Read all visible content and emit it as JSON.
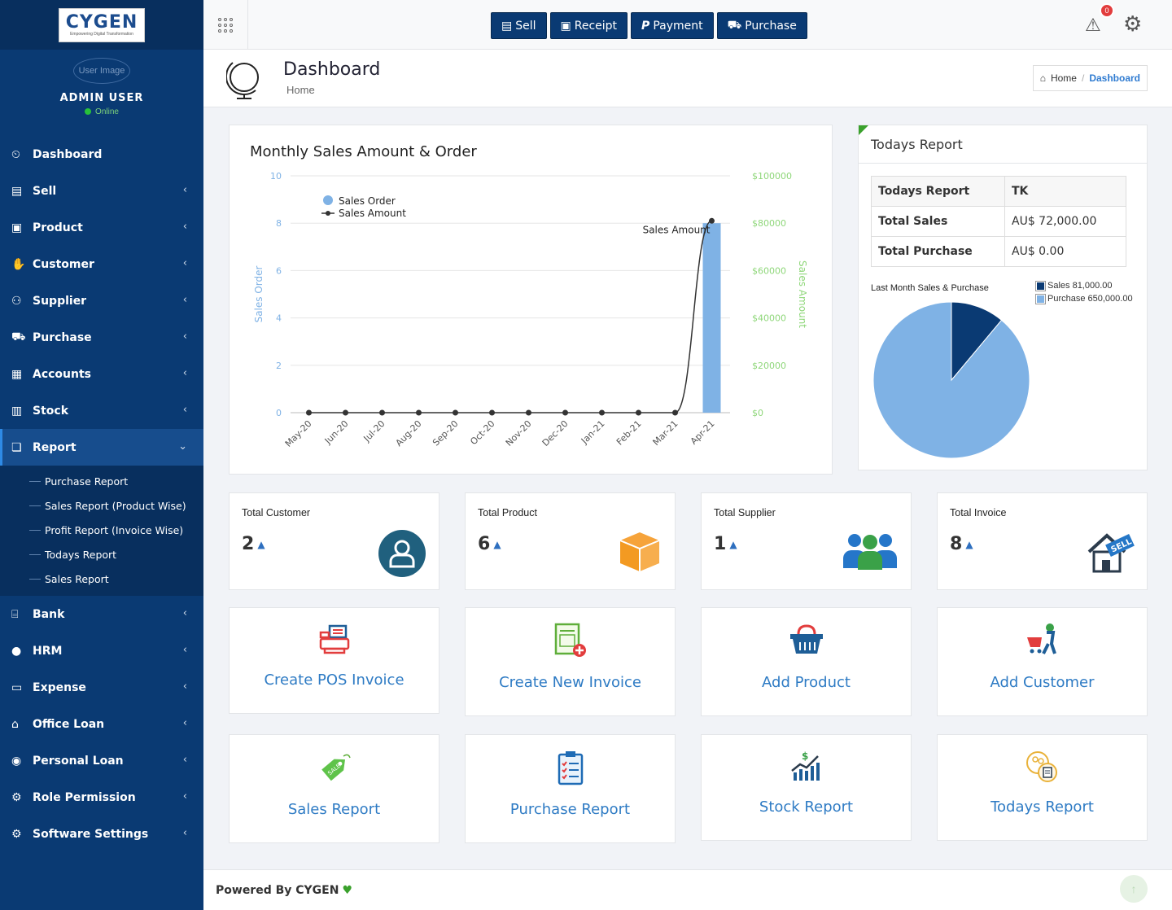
{
  "brand": {
    "logo_text": "CYGEN",
    "logo_tagline": "Empowering Digital Transformation"
  },
  "user": {
    "avatar_alt": "User Image",
    "name": "ADMIN USER",
    "status": "Online"
  },
  "sidebar": {
    "items": [
      {
        "label": "Dashboard",
        "icon": "dashboard-icon"
      },
      {
        "label": "Sell",
        "icon": "pos-icon"
      },
      {
        "label": "Product",
        "icon": "product-icon"
      },
      {
        "label": "Customer",
        "icon": "handshake-icon"
      },
      {
        "label": "Supplier",
        "icon": "user-icon"
      },
      {
        "label": "Purchase",
        "icon": "cart-icon"
      },
      {
        "label": "Accounts",
        "icon": "money-icon"
      },
      {
        "label": "Stock",
        "icon": "bar-chart-icon"
      },
      {
        "label": "Report",
        "icon": "book-icon"
      },
      {
        "label": "Bank",
        "icon": "bank-icon"
      },
      {
        "label": "HRM",
        "icon": "person-icon"
      },
      {
        "label": "Expense",
        "icon": "credit-card-icon"
      },
      {
        "label": "Office Loan",
        "icon": "institution-icon"
      },
      {
        "label": "Personal Loan",
        "icon": "user-circle-icon"
      },
      {
        "label": "Role Permission",
        "icon": "gear-icon"
      },
      {
        "label": "Software Settings",
        "icon": "gear-icon"
      }
    ],
    "report_submenu": [
      "Purchase Report",
      "Sales Report (Product Wise)",
      "Profit Report (Invoice Wise)",
      "Todays Report",
      "Sales Report"
    ]
  },
  "toolbar": {
    "sell": "Sell",
    "receipt": "Receipt",
    "payment": "Payment",
    "purchase": "Purchase",
    "alert_count": "0"
  },
  "page": {
    "title": "Dashboard",
    "subtitle": "Home",
    "breadcrumb_home": "Home",
    "breadcrumb_current": "Dashboard"
  },
  "chart_data": {
    "type": "bar",
    "title": "Monthly Sales Amount & Order",
    "categories": [
      "May-20",
      "Jun-20",
      "Jul-20",
      "Aug-20",
      "Sep-20",
      "Oct-20",
      "Nov-20",
      "Dec-20",
      "Jan-21",
      "Feb-21",
      "Mar-21",
      "Apr-21"
    ],
    "series": [
      {
        "name": "Sales Order",
        "type": "bar",
        "axis": "left",
        "values": [
          0,
          0,
          0,
          0,
          0,
          0,
          0,
          0,
          0,
          0,
          0,
          8
        ]
      },
      {
        "name": "Sales Amount",
        "type": "line",
        "axis": "right",
        "values": [
          0,
          0,
          0,
          0,
          0,
          0,
          0,
          0,
          0,
          0,
          0,
          81000
        ]
      }
    ],
    "ylabel": "Sales Order",
    "ylabel_right": "Sales Amount",
    "ylim": [
      0,
      10
    ],
    "ylim_right": [
      0,
      100000
    ],
    "yticks": [
      "0",
      "2",
      "4",
      "6",
      "8",
      "10"
    ],
    "yticks_right": [
      "$0",
      "$20000",
      "$40000",
      "$60000",
      "$80000",
      "$100000"
    ],
    "annotation": "Sales Amount",
    "legend": "top-left",
    "colors": {
      "bar": "#7fb2e5",
      "line": "#333333",
      "left_axis": "#7fb2e5",
      "right_axis": "#8fd77a"
    }
  },
  "today": {
    "title": "Todays Report",
    "table": [
      [
        "Todays Report",
        "TK"
      ],
      [
        "Total Sales",
        "AU$ 72,000.00"
      ],
      [
        "Total Purchase",
        "AU$ 0.00"
      ]
    ],
    "pie_title": "Last Month Sales & Purchase",
    "pie": [
      {
        "label": "Sales 81,000.00",
        "value": 81000,
        "color": "#0a3a73"
      },
      {
        "label": "Purchase 650,000.00",
        "value": 650000,
        "color": "#7fb2e5"
      }
    ]
  },
  "stats": [
    {
      "label": "Total Customer",
      "value": "2",
      "icon": "customer-icon"
    },
    {
      "label": "Total Product",
      "value": "6",
      "icon": "box-icon"
    },
    {
      "label": "Total Supplier",
      "value": "1",
      "icon": "team-icon"
    },
    {
      "label": "Total Invoice",
      "value": "8",
      "icon": "sell-house-icon"
    }
  ],
  "actions": [
    {
      "label": "Create POS Invoice",
      "icon": "pos-register-icon"
    },
    {
      "label": "Create New Invoice",
      "icon": "invoice-add-icon"
    },
    {
      "label": "Add Product",
      "icon": "basket-icon"
    },
    {
      "label": "Add Customer",
      "icon": "shopper-icon"
    },
    {
      "label": "Sales Report",
      "icon": "sale-tag-icon"
    },
    {
      "label": "Purchase Report",
      "icon": "clipboard-icon"
    },
    {
      "label": "Stock Report",
      "icon": "stock-chart-icon"
    },
    {
      "label": "Todays Report",
      "icon": "report-people-icon"
    }
  ],
  "footer": {
    "text": "Powered By CYGEN"
  }
}
